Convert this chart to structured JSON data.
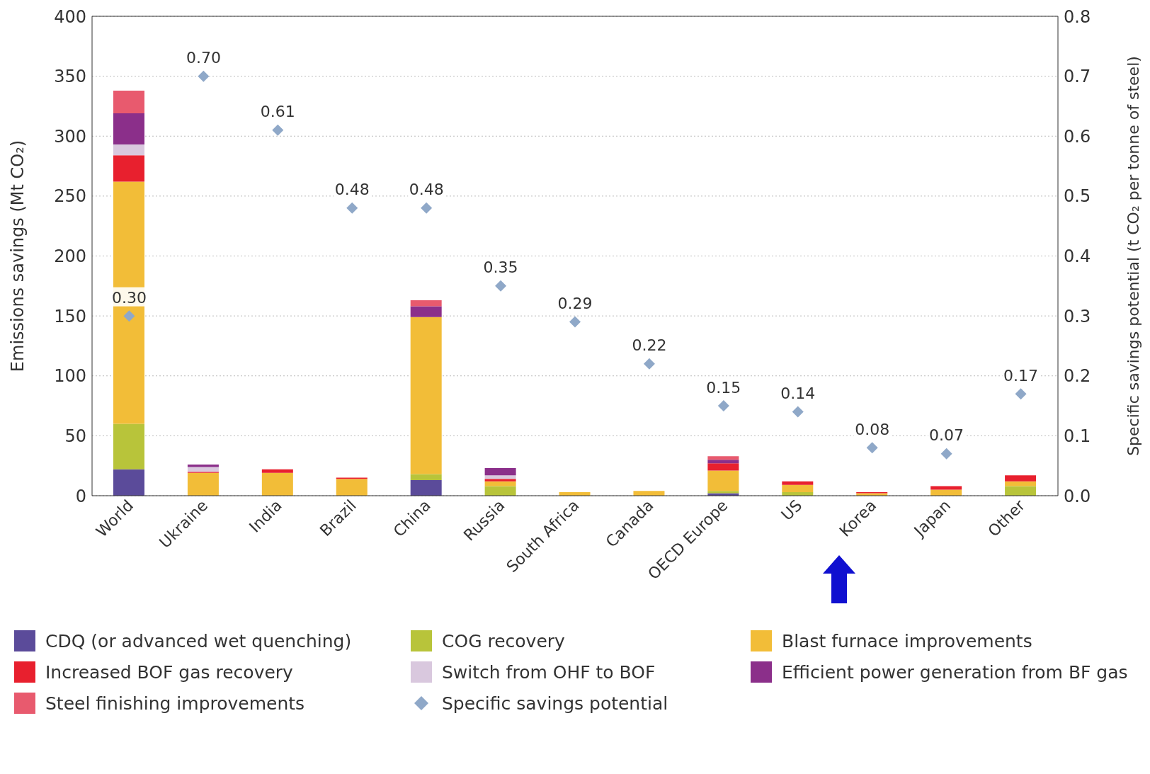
{
  "chart_data": {
    "type": "bar",
    "stacked": true,
    "ylabel": "Emissions savings (Mt CO₂)",
    "y2label": "Specific savings potential (t CO₂ per tonne of steel)",
    "categories": [
      "World",
      "Ukraine",
      "India",
      "Brazil",
      "China",
      "Russia",
      "South Africa",
      "Canada",
      "OECD Europe",
      "US",
      "Korea",
      "Japan",
      "Other"
    ],
    "series": [
      {
        "name": "CDQ (or advanced wet quenching)",
        "color": "#5b4b9a",
        "values": [
          22,
          0,
          0,
          0,
          13,
          0,
          0,
          0,
          2,
          0,
          0,
          0,
          0
        ]
      },
      {
        "name": "COG recovery",
        "color": "#b8c43a",
        "values": [
          38,
          0,
          0,
          0,
          5,
          8,
          0,
          0,
          2,
          3,
          0,
          0,
          8
        ]
      },
      {
        "name": "Blast furnace improvements",
        "color": "#f2bd38",
        "values": [
          202,
          19,
          19,
          14,
          131,
          4,
          3,
          4,
          17,
          6,
          2,
          5,
          4
        ]
      },
      {
        "name": "Increased BOF gas recovery",
        "color": "#e8202e",
        "values": [
          22,
          1,
          3,
          1,
          0,
          2,
          0,
          0,
          6,
          3,
          1,
          3,
          5
        ]
      },
      {
        "name": "Switch from OHF to BOF",
        "color": "#d9c8de",
        "values": [
          9,
          4,
          0,
          0,
          0,
          3,
          0,
          0,
          0,
          0,
          0,
          0,
          0
        ]
      },
      {
        "name": "Efficient power generation from BF gas",
        "color": "#8b2f8a",
        "values": [
          26,
          2,
          0,
          0,
          9,
          6,
          0,
          0,
          3,
          0,
          0,
          0,
          0
        ]
      },
      {
        "name": "Steel finishing improvements",
        "color": "#e85a6e",
        "values": [
          19,
          0,
          0,
          0,
          5,
          0,
          0,
          0,
          3,
          0,
          0,
          0,
          0
        ]
      },
      {
        "name": "Specific savings potential",
        "type": "scatter",
        "axis": "y2",
        "marker": "diamond",
        "color": "#8fa8c8",
        "values": [
          0.3,
          0.7,
          0.61,
          0.48,
          0.48,
          0.35,
          0.29,
          0.22,
          0.15,
          0.14,
          0.08,
          0.07,
          0.17
        ],
        "value_labels": [
          "0.30",
          "0.70",
          "0.61",
          "0.48",
          "0.48",
          "0.35",
          "0.29",
          "0.22",
          "0.15",
          "0.14",
          "0.08",
          "0.07",
          "0.17"
        ]
      }
    ],
    "ylim": [
      0,
      400
    ],
    "yticks": [
      0,
      50,
      100,
      150,
      200,
      250,
      300,
      350,
      400
    ],
    "y2lim": [
      0,
      0.8
    ],
    "y2ticks": [
      {
        "value": 0,
        "label": "0.0"
      },
      0.1,
      0.2,
      0.3,
      0.4,
      0.5,
      0.6,
      0.7,
      0.8
    ],
    "grid": "y",
    "legend": "bottom"
  }
}
